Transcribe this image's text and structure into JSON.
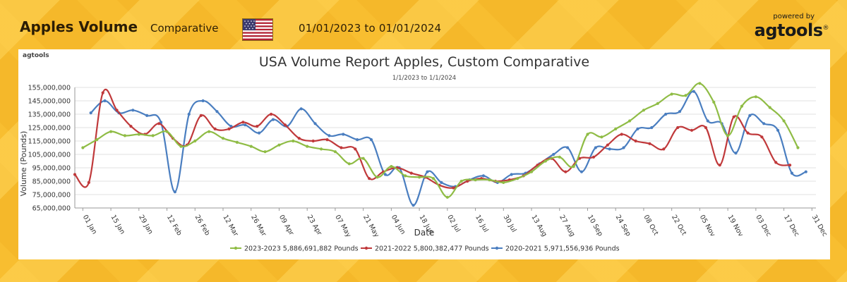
{
  "header": {
    "title": "Apples Volume",
    "mode": "Comparative",
    "flag_icon": "us-flag-icon",
    "date_range": "01/01/2023  to  01/01/2024",
    "powered_by": "powered by",
    "brand": "agtools",
    "brand_mark": "®"
  },
  "panel": {
    "logo_text": "agtools"
  },
  "colors": {
    "s2023": "#8fbc45",
    "s2021": "#c0393b",
    "s2020": "#4a7ec0"
  },
  "chart_data": {
    "type": "line",
    "title": "USA Volume Report  Apples, Custom Comparative",
    "subtitle": "1/1/2023 to 1/1/2024",
    "xlabel": "Date",
    "ylabel": "Volume  (Pounds)",
    "ylim": [
      65000000,
      155000000
    ],
    "yticks": [
      65000000,
      75000000,
      85000000,
      95000000,
      105000000,
      115000000,
      125000000,
      135000000,
      145000000,
      155000000
    ],
    "ytick_labels": [
      "65,000,000",
      "75,000,000",
      "85,000,000",
      "95,000,000",
      "105,000,000",
      "115,000,000",
      "125,000,000",
      "135,000,000",
      "145,000,000",
      "155,000,000"
    ],
    "xlim_days": [
      -4,
      366
    ],
    "xticks": [
      {
        "label": "01 Jan",
        "day": 0
      },
      {
        "label": "15 Jan",
        "day": 14
      },
      {
        "label": "29 Jan",
        "day": 28
      },
      {
        "label": "12 Feb",
        "day": 42
      },
      {
        "label": "26 Feb",
        "day": 56
      },
      {
        "label": "12 Mar",
        "day": 70
      },
      {
        "label": "26 Mar",
        "day": 84
      },
      {
        "label": "09 Apr",
        "day": 98
      },
      {
        "label": "23 Apr",
        "day": 112
      },
      {
        "label": "07 May",
        "day": 126
      },
      {
        "label": "21 May",
        "day": 140
      },
      {
        "label": "04 Jun",
        "day": 154
      },
      {
        "label": "18 Jun",
        "day": 168
      },
      {
        "label": "02 Jul",
        "day": 182
      },
      {
        "label": "16 Jul",
        "day": 196
      },
      {
        "label": "30 Jul",
        "day": 210
      },
      {
        "label": "13 Aug",
        "day": 224
      },
      {
        "label": "27 Aug",
        "day": 238
      },
      {
        "label": "10 Sep",
        "day": 252
      },
      {
        "label": "24 Sep",
        "day": 266
      },
      {
        "label": "08 Oct",
        "day": 280
      },
      {
        "label": "22 Oct",
        "day": 294
      },
      {
        "label": "05 Nov",
        "day": 308
      },
      {
        "label": "19 Nov",
        "day": 322
      },
      {
        "label": "03 Dec",
        "day": 336
      },
      {
        "label": "17 Dec",
        "day": 350
      },
      {
        "label": "31 Dec",
        "day": 364
      }
    ],
    "grid": "horizontal",
    "legend_position": "bottom",
    "series": [
      {
        "name": "2023-2023 5,886,691,882 Pounds",
        "color_key": "s2023",
        "points": [
          [
            0,
            110000000
          ],
          [
            7,
            116000000
          ],
          [
            14,
            122000000
          ],
          [
            21,
            119000000
          ],
          [
            28,
            120000000
          ],
          [
            35,
            119000000
          ],
          [
            42,
            122000000
          ],
          [
            49,
            111000000
          ],
          [
            56,
            115000000
          ],
          [
            63,
            122000000
          ],
          [
            70,
            117000000
          ],
          [
            77,
            114000000
          ],
          [
            84,
            111000000
          ],
          [
            91,
            107000000
          ],
          [
            98,
            112000000
          ],
          [
            105,
            115000000
          ],
          [
            112,
            111000000
          ],
          [
            119,
            109000000
          ],
          [
            126,
            107000000
          ],
          [
            133,
            98000000
          ],
          [
            140,
            102000000
          ],
          [
            147,
            88000000
          ],
          [
            154,
            96000000
          ],
          [
            161,
            89000000
          ],
          [
            168,
            88000000
          ],
          [
            175,
            87000000
          ],
          [
            182,
            73000000
          ],
          [
            189,
            85000000
          ],
          [
            196,
            86000000
          ],
          [
            203,
            86000000
          ],
          [
            210,
            84000000
          ],
          [
            217,
            87000000
          ],
          [
            224,
            92000000
          ],
          [
            231,
            100000000
          ],
          [
            238,
            103000000
          ],
          [
            245,
            96000000
          ],
          [
            252,
            120000000
          ],
          [
            259,
            118000000
          ],
          [
            266,
            124000000
          ],
          [
            273,
            130000000
          ],
          [
            280,
            138000000
          ],
          [
            287,
            143000000
          ],
          [
            294,
            150000000
          ],
          [
            301,
            149000000
          ],
          [
            308,
            158000000
          ],
          [
            315,
            144000000
          ],
          [
            322,
            119000000
          ],
          [
            329,
            141000000
          ],
          [
            336,
            148000000
          ],
          [
            343,
            140000000
          ],
          [
            350,
            130000000
          ],
          [
            357,
            110000000
          ]
        ]
      },
      {
        "name": "2021-2022 5,800,382,477 Pounds",
        "color_key": "s2021",
        "points": [
          [
            -4,
            90000000
          ],
          [
            3,
            84000000
          ],
          [
            10,
            151000000
          ],
          [
            17,
            138000000
          ],
          [
            24,
            126000000
          ],
          [
            31,
            120000000
          ],
          [
            38,
            128000000
          ],
          [
            45,
            117000000
          ],
          [
            52,
            112000000
          ],
          [
            59,
            134000000
          ],
          [
            66,
            124000000
          ],
          [
            73,
            124000000
          ],
          [
            80,
            129000000
          ],
          [
            87,
            126000000
          ],
          [
            94,
            135000000
          ],
          [
            101,
            127000000
          ],
          [
            108,
            117000000
          ],
          [
            115,
            115000000
          ],
          [
            122,
            116000000
          ],
          [
            129,
            110000000
          ],
          [
            136,
            109000000
          ],
          [
            143,
            87000000
          ],
          [
            150,
            92000000
          ],
          [
            157,
            95000000
          ],
          [
            164,
            91000000
          ],
          [
            171,
            88000000
          ],
          [
            178,
            82000000
          ],
          [
            185,
            80000000
          ],
          [
            192,
            85000000
          ],
          [
            199,
            87000000
          ],
          [
            206,
            85000000
          ],
          [
            213,
            86000000
          ],
          [
            220,
            89000000
          ],
          [
            227,
            97000000
          ],
          [
            234,
            102000000
          ],
          [
            241,
            92000000
          ],
          [
            248,
            102000000
          ],
          [
            255,
            103000000
          ],
          [
            262,
            112000000
          ],
          [
            269,
            120000000
          ],
          [
            276,
            115000000
          ],
          [
            283,
            113000000
          ],
          [
            290,
            109000000
          ],
          [
            297,
            125000000
          ],
          [
            304,
            123000000
          ],
          [
            311,
            125000000
          ],
          [
            318,
            97000000
          ],
          [
            325,
            133000000
          ],
          [
            332,
            121000000
          ],
          [
            339,
            118000000
          ],
          [
            346,
            99000000
          ],
          [
            353,
            97000000
          ]
        ]
      },
      {
        "name": "2020-2021 5,971,556,936 Pounds",
        "color_key": "s2020",
        "points": [
          [
            4,
            136000000
          ],
          [
            11,
            145000000
          ],
          [
            18,
            136000000
          ],
          [
            25,
            138000000
          ],
          [
            32,
            134000000
          ],
          [
            39,
            129000000
          ],
          [
            46,
            77000000
          ],
          [
            53,
            135000000
          ],
          [
            60,
            145000000
          ],
          [
            67,
            137000000
          ],
          [
            74,
            126000000
          ],
          [
            81,
            127000000
          ],
          [
            88,
            121000000
          ],
          [
            95,
            131000000
          ],
          [
            102,
            126000000
          ],
          [
            109,
            139000000
          ],
          [
            116,
            128000000
          ],
          [
            123,
            119000000
          ],
          [
            130,
            120000000
          ],
          [
            137,
            116000000
          ],
          [
            144,
            116000000
          ],
          [
            151,
            90000000
          ],
          [
            158,
            95000000
          ],
          [
            165,
            67000000
          ],
          [
            172,
            92000000
          ],
          [
            179,
            84000000
          ],
          [
            186,
            81000000
          ],
          [
            193,
            86000000
          ],
          [
            200,
            89000000
          ],
          [
            207,
            84000000
          ],
          [
            214,
            90000000
          ],
          [
            221,
            91000000
          ],
          [
            228,
            98000000
          ],
          [
            235,
            105000000
          ],
          [
            242,
            110000000
          ],
          [
            249,
            92000000
          ],
          [
            256,
            110000000
          ],
          [
            263,
            109000000
          ],
          [
            270,
            110000000
          ],
          [
            277,
            124000000
          ],
          [
            284,
            125000000
          ],
          [
            291,
            135000000
          ],
          [
            298,
            137000000
          ],
          [
            305,
            152000000
          ],
          [
            312,
            130000000
          ],
          [
            319,
            128000000
          ],
          [
            326,
            106000000
          ],
          [
            333,
            134000000
          ],
          [
            340,
            128000000
          ],
          [
            347,
            123000000
          ],
          [
            354,
            91000000
          ],
          [
            361,
            92000000
          ]
        ]
      }
    ]
  }
}
